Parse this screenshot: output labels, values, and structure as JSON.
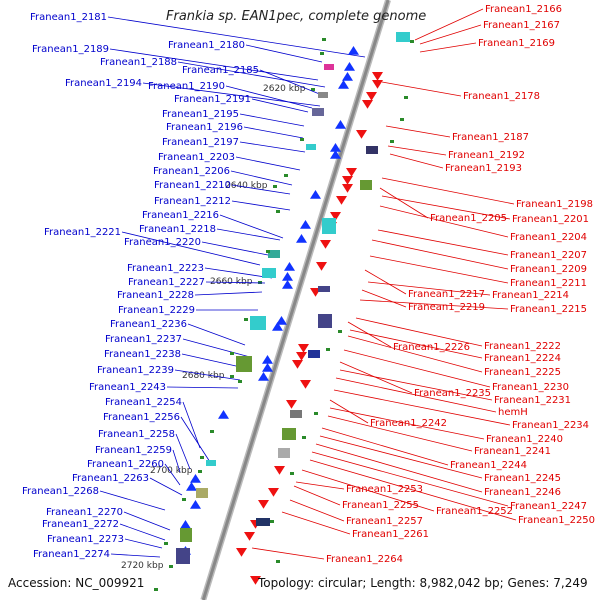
{
  "title": "Frankia sp. EAN1pec, complete genome",
  "accession": "Accession: NC_009921",
  "topology": "Topology: circular; Length: 8,982,042 bp; Genes: 7,249",
  "colors": {
    "left_label": "#0000cc",
    "right_label": "#e00000",
    "backbone": "#888888",
    "tick": "#2a8a2a"
  },
  "kbp_marks": [
    "2620 kbp",
    "2640 kbp",
    "2660 kbp",
    "2680 kbp",
    "2700 kbp",
    "2720 kbp"
  ],
  "left_genes": [
    "Franean1_2181",
    "Franean1_2180",
    "Franean1_2189",
    "Franean1_2188",
    "Franean1_2185",
    "Franean1_2194",
    "Franean1_2190",
    "Franean1_2191",
    "Franean1_2195",
    "Franean1_2196",
    "Franean1_2197",
    "Franean1_2203",
    "Franean1_2206",
    "Franean1_2210",
    "Franean1_2212",
    "Franean1_2216",
    "Franean1_2218",
    "Franean1_2221",
    "Franean1_2220",
    "Franean1_2223",
    "Franean1_2227",
    "Franean1_2228",
    "Franean1_2229",
    "Franean1_2236",
    "Franean1_2237",
    "Franean1_2238",
    "Franean1_2239",
    "Franean1_2243",
    "Franean1_2254",
    "Franean1_2256",
    "Franean1_2258",
    "Franean1_2259",
    "Franean1_2260",
    "Franean1_2263",
    "Franean1_2268",
    "Franean1_2270",
    "Franean1_2272",
    "Franean1_2273",
    "Franean1_2274"
  ],
  "right_genes": [
    "Franean1_2166",
    "Franean1_2167",
    "Franean1_2169",
    "Franean1_2178",
    "Franean1_2187",
    "Franean1_2192",
    "Franean1_2193",
    "Franean1_2198",
    "Franean1_2205",
    "Franean1_2201",
    "Franean1_2204",
    "Franean1_2207",
    "Franean1_2209",
    "Franean1_2211",
    "Franean1_2217",
    "Franean1_2214",
    "Franean1_2219",
    "Franean1_2215",
    "Franean1_2222",
    "Franean1_2226",
    "Franean1_2224",
    "Franean1_2225",
    "Franean1_2230",
    "Franean1_2235",
    "Franean1_2231",
    "hemH",
    "Franean1_2242",
    "Franean1_2234",
    "Franean1_2240",
    "Franean1_2241",
    "Franean1_2244",
    "Franean1_2245",
    "Franean1_2246",
    "Franean1_2253",
    "Franean1_2247",
    "Franean1_2255",
    "Franean1_2252",
    "Franean1_2250",
    "Franean1_2257",
    "Franean1_2261",
    "Franean1_2264"
  ]
}
